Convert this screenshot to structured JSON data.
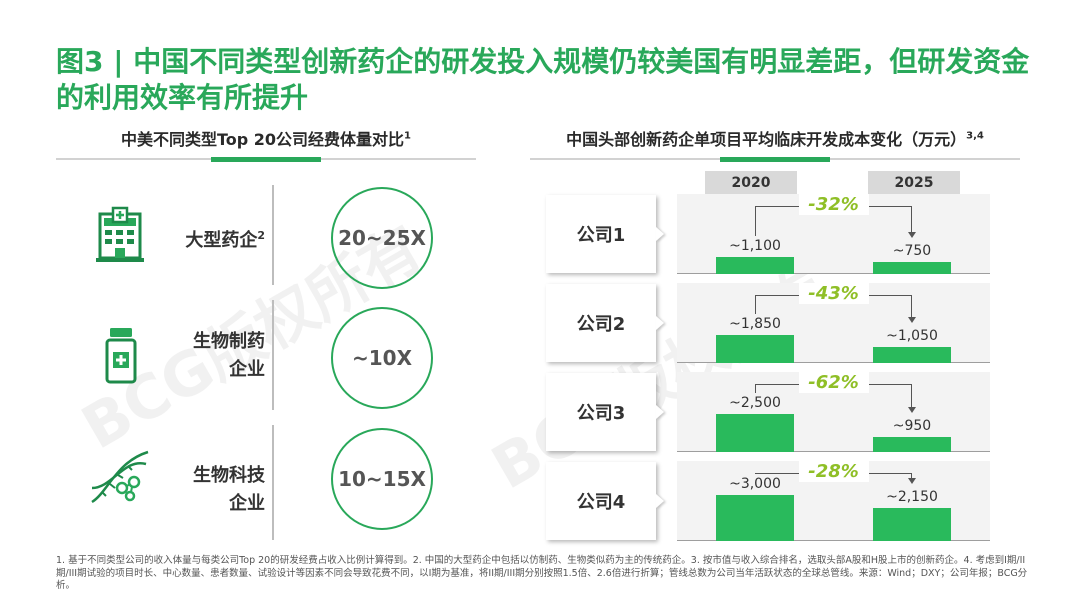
{
  "title": "图3 | 中国不同类型创新药企的研发投入规模仍较美国有明显差距，但研发资金的利用效率有所提升",
  "left_section": {
    "heading": "中美不同类型Top 20公司经费体量对比",
    "heading_sup": "1",
    "rows": [
      {
        "label": "大型药企",
        "label_sup": "2",
        "ratio": "20~25X",
        "icon": "hospital-building-icon"
      },
      {
        "label": "生物制药企业",
        "label_line1": "生物制药",
        "label_line2": "企业",
        "ratio": "~10X",
        "icon": "medicine-bottle-icon"
      },
      {
        "label": "生物科技企业",
        "label_line1": "生物科技",
        "label_line2": "企业",
        "ratio": "10~15X",
        "icon": "dna-molecule-icon"
      }
    ]
  },
  "right_section": {
    "heading": "中国头部创新药企单项目平均临床开发成本变化（万元）",
    "heading_sup": "3,4",
    "years": [
      "2020",
      "2025"
    ]
  },
  "chart_data": {
    "type": "bar",
    "title": "中国头部创新药企单项目平均临床开发成本变化（万元）",
    "categories": [
      "公司1",
      "公司2",
      "公司3",
      "公司4"
    ],
    "series": [
      {
        "name": "2020",
        "values": [
          1100,
          1850,
          2500,
          3000
        ],
        "labels": [
          "~1,100",
          "~1,850",
          "~2,500",
          "~3,000"
        ]
      },
      {
        "name": "2025",
        "values": [
          750,
          1050,
          950,
          2150
        ],
        "labels": [
          "~750",
          "~1,050",
          "~950",
          "~2,150"
        ]
      }
    ],
    "changes": [
      "-32%",
      "-43%",
      "-62%",
      "-28%"
    ],
    "ylim": [
      0,
      3000
    ],
    "grid": false,
    "legend": "top"
  },
  "footnote": "1. 基于不同类型公司的收入体量与每类公司Top 20的研发经费占收入比例计算得到。2. 中国的大型药企中包括以仿制药、生物类似药为主的传统药企。3. 按市值与收入综合排名，选取头部A股和H股上市的创新药企。4. 考虑到I期/II期/III期试验的项目时长、中心数量、患者数量、试验设计等因素不同会导致花费不同，以I期为基准，将II期/III期分别按照1.5倍、2.6倍进行折算；管线总数为公司当年活跃状态的全球总管线。来源：Wind；DXY；公司年报；BCG分析。",
  "watermark": "BCG版权所有",
  "colors": {
    "accent": "#29a85a",
    "bar": "#29ba5c",
    "change": "#8fbf27"
  }
}
